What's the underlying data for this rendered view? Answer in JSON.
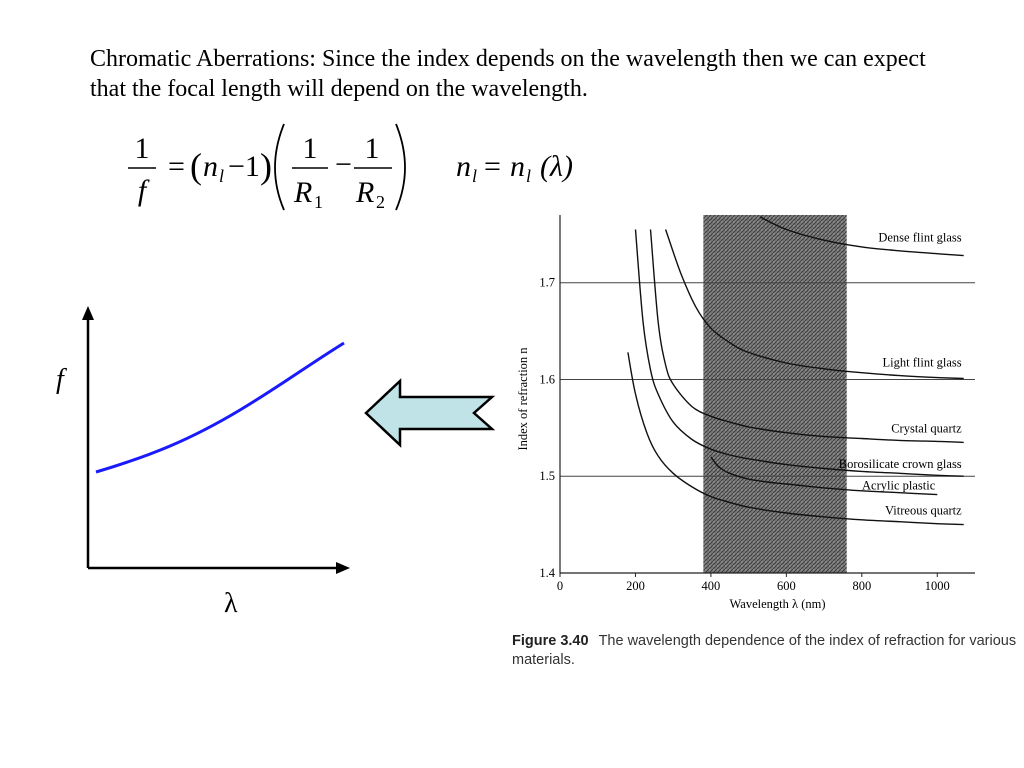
{
  "slide": {
    "text": "Chromatic Aberrations: Since the index depends on the wavelength then we can expect that the focal length will depend on the wavelength.",
    "formula": {
      "one": "1",
      "f": "f",
      "eq": "=",
      "n": "n",
      "l": "l",
      "minus_one": "−1",
      "R": "R",
      "sub1": "1",
      "sub2": "2",
      "minus": "−",
      "lambda_arg": "(λ)"
    },
    "sketch": {
      "ylabel": "f",
      "xlabel": "λ",
      "curve_color": "#1a1aff"
    },
    "arrow_color": "#bfe3e6"
  },
  "chart_data": {
    "type": "line",
    "xlabel": "Wavelength λ (nm)",
    "ylabel": "Index of refraction n",
    "xlim": [
      0,
      1100
    ],
    "ylim": [
      1.4,
      1.77
    ],
    "xticks": [
      0,
      200,
      400,
      600,
      800,
      1000
    ],
    "yticks": [
      1.4,
      1.5,
      1.6,
      1.7
    ],
    "grid": "horizontal",
    "visible_band": {
      "x0": 380,
      "x1": 760
    },
    "series": [
      {
        "name": "Dense flint glass",
        "x": [
          530,
          600,
          700,
          800,
          900,
          1000,
          1070
        ],
        "y": [
          1.768,
          1.755,
          1.744,
          1.737,
          1.733,
          1.73,
          1.728
        ]
      },
      {
        "name": "Light flint glass",
        "x": [
          280,
          320,
          360,
          400,
          450,
          500,
          600,
          700,
          800,
          900,
          1000,
          1070
        ],
        "y": [
          1.755,
          1.71,
          1.675,
          1.653,
          1.638,
          1.628,
          1.617,
          1.611,
          1.607,
          1.604,
          1.602,
          1.601
        ]
      },
      {
        "name": "Crystal quartz",
        "x": [
          240,
          260,
          280,
          300,
          350,
          400,
          450,
          500,
          600,
          700,
          800,
          900,
          1000,
          1070
        ],
        "y": [
          1.755,
          1.66,
          1.615,
          1.595,
          1.572,
          1.562,
          1.556,
          1.551,
          1.545,
          1.541,
          1.539,
          1.537,
          1.536,
          1.535
        ]
      },
      {
        "name": "Borosilicate crown glass",
        "x": [
          200,
          220,
          240,
          260,
          300,
          350,
          400,
          450,
          500,
          600,
          700,
          800,
          900,
          1000,
          1070
        ],
        "y": [
          1.755,
          1.66,
          1.61,
          1.585,
          1.556,
          1.538,
          1.528,
          1.522,
          1.518,
          1.512,
          1.508,
          1.505,
          1.503,
          1.501,
          1.5
        ]
      },
      {
        "name": "Acrylic plastic",
        "x": [
          400,
          420,
          450,
          500,
          550,
          600,
          700,
          800,
          900,
          1000
        ],
        "y": [
          1.52,
          1.51,
          1.503,
          1.497,
          1.494,
          1.492,
          1.488,
          1.485,
          1.483,
          1.481
        ]
      },
      {
        "name": "Vitreous quartz",
        "x": [
          180,
          200,
          230,
          260,
          300,
          350,
          400,
          450,
          500,
          600,
          700,
          800,
          900,
          1000,
          1070
        ],
        "y": [
          1.628,
          1.585,
          1.545,
          1.521,
          1.503,
          1.489,
          1.479,
          1.473,
          1.468,
          1.462,
          1.458,
          1.455,
          1.453,
          1.451,
          1.45
        ]
      }
    ],
    "caption_label": "Figure 3.40",
    "caption": "The wavelength dependence of the index of refraction for various materials."
  }
}
